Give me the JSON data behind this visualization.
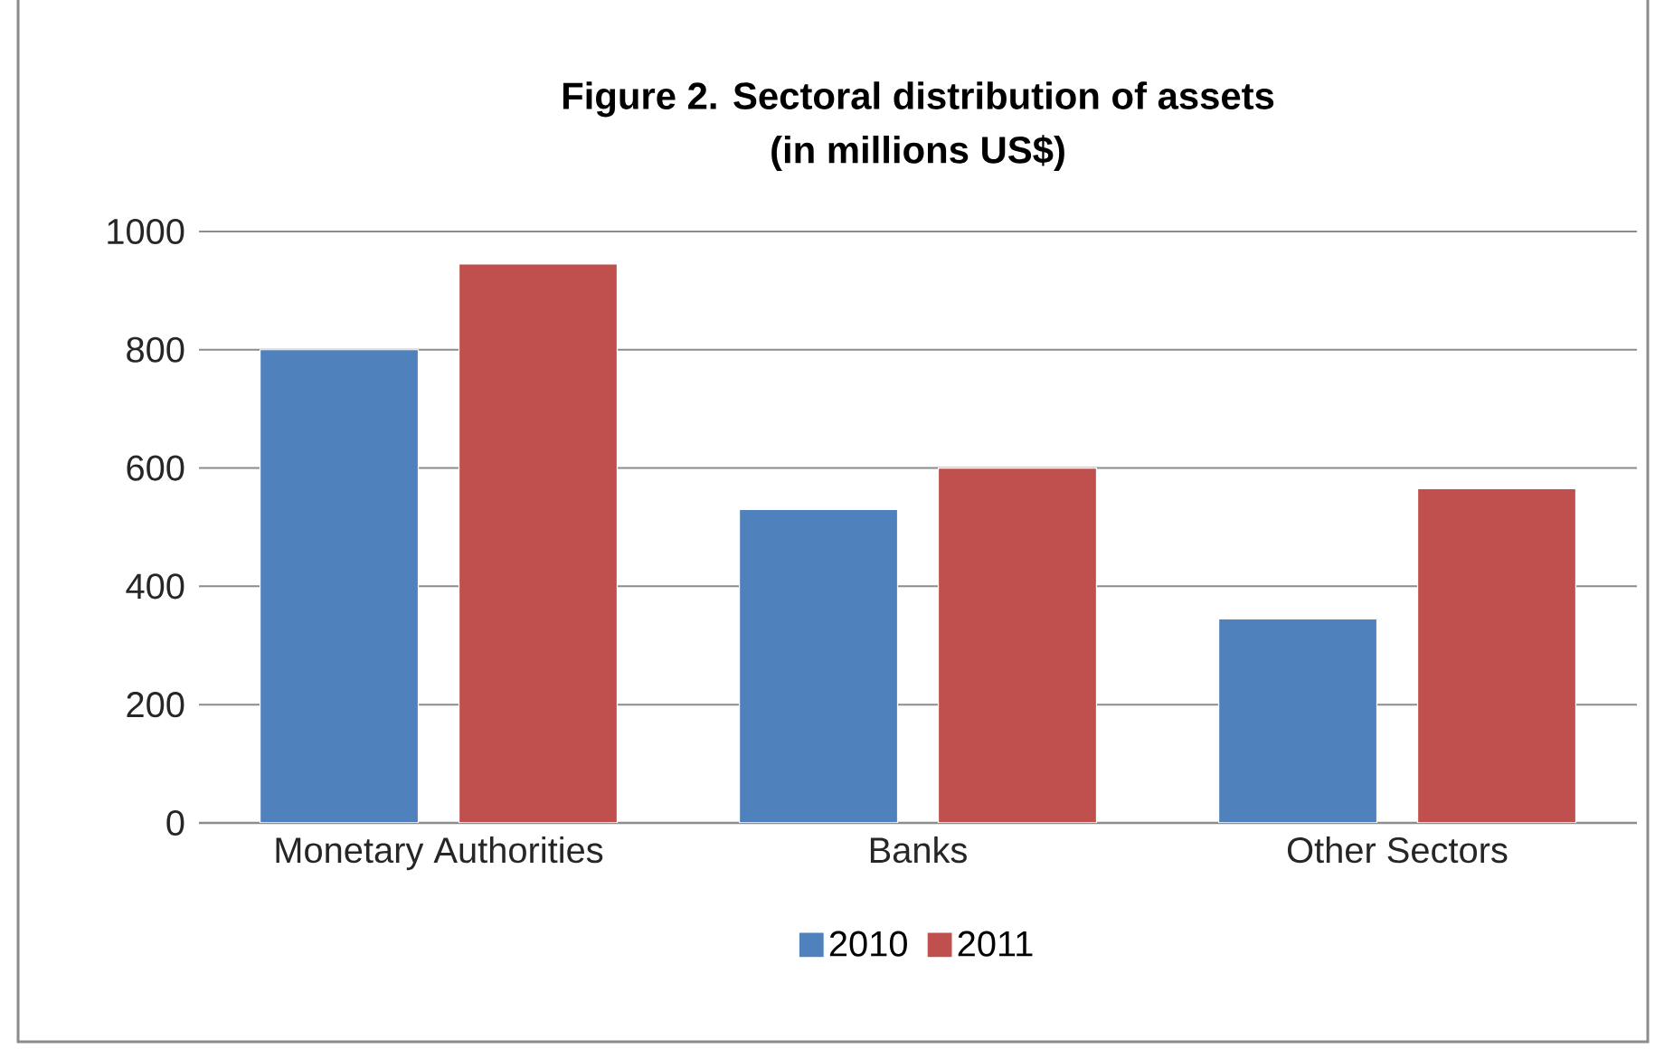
{
  "chart_data": {
    "type": "bar",
    "title": "Figure 2. Sectoral distribution of assets",
    "subtitle": "(in millions US$)",
    "categories": [
      "Monetary Authorities",
      "Banks",
      "Other Sectors"
    ],
    "series": [
      {
        "name": "2010",
        "color": "#4f81bd",
        "values": [
          800,
          530,
          345
        ]
      },
      {
        "name": "2011",
        "color": "#c0504d",
        "values": [
          945,
          600,
          565
        ]
      }
    ],
    "ylim": [
      0,
      1000
    ],
    "yticks": [
      0,
      200,
      400,
      600,
      800,
      1000
    ],
    "grid": "y",
    "legend": "bottom"
  }
}
